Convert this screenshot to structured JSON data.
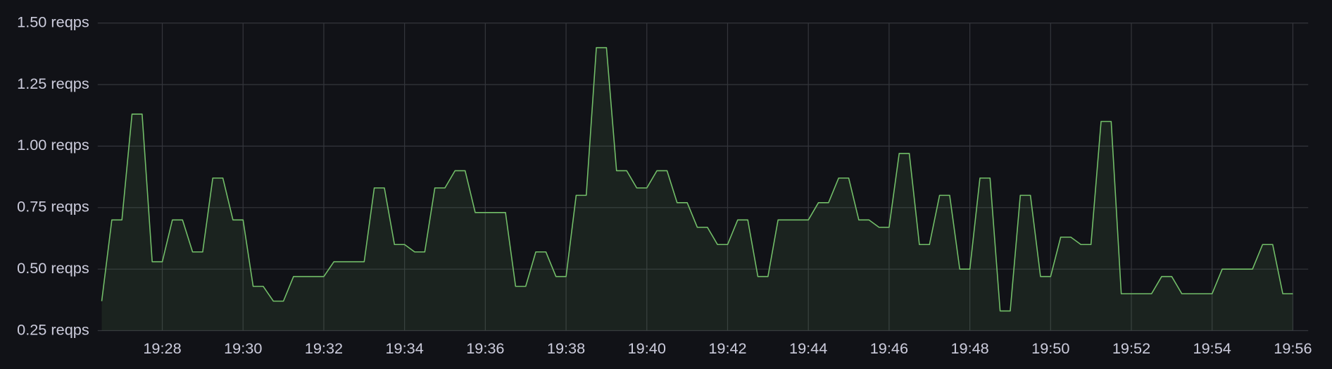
{
  "chart_data": {
    "type": "line",
    "x": [
      26.5,
      26.75,
      27,
      27.25,
      27.5,
      27.75,
      28,
      28.25,
      28.5,
      28.75,
      29,
      29.25,
      29.5,
      29.75,
      30,
      30.25,
      30.5,
      30.75,
      31,
      31.25,
      31.5,
      31.75,
      32,
      32.25,
      32.5,
      32.75,
      33,
      33.25,
      33.5,
      33.75,
      34,
      34.25,
      34.5,
      34.75,
      35,
      35.25,
      35.5,
      35.75,
      36,
      36.25,
      36.5,
      36.75,
      37,
      37.25,
      37.5,
      37.75,
      38,
      38.25,
      38.5,
      38.75,
      39,
      39.25,
      39.5,
      39.75,
      40,
      40.25,
      40.5,
      40.75,
      41,
      41.25,
      41.5,
      41.75,
      42,
      42.25,
      42.5,
      42.75,
      43,
      43.25,
      43.5,
      43.75,
      44,
      44.25,
      44.5,
      44.75,
      45,
      45.25,
      45.5,
      45.75,
      46,
      46.25,
      46.5,
      46.75,
      47,
      47.25,
      47.5,
      47.75,
      48,
      48.25,
      48.5,
      48.75,
      49,
      49.25,
      49.5,
      49.75,
      50,
      50.25,
      50.5,
      50.75,
      51,
      51.25,
      51.5,
      51.75,
      52,
      52.25,
      52.5,
      52.75,
      53,
      53.25,
      53.5,
      53.75,
      54,
      54.25,
      54.5,
      54.75,
      55,
      55.25,
      55.5,
      55.75,
      56
    ],
    "series": [
      {
        "color": "#73bf69",
        "values": [
          0.37,
          0.7,
          0.7,
          1.13,
          1.13,
          0.53,
          0.53,
          0.7,
          0.7,
          0.57,
          0.57,
          0.87,
          0.87,
          0.7,
          0.7,
          0.43,
          0.43,
          0.37,
          0.37,
          0.47,
          0.47,
          0.47,
          0.47,
          0.53,
          0.53,
          0.53,
          0.53,
          0.83,
          0.83,
          0.6,
          0.6,
          0.57,
          0.57,
          0.83,
          0.83,
          0.9,
          0.9,
          0.73,
          0.73,
          0.73,
          0.73,
          0.43,
          0.43,
          0.57,
          0.57,
          0.47,
          0.47,
          0.8,
          0.8,
          1.4,
          1.4,
          0.9,
          0.9,
          0.83,
          0.83,
          0.9,
          0.9,
          0.77,
          0.77,
          0.67,
          0.67,
          0.6,
          0.6,
          0.7,
          0.7,
          0.47,
          0.47,
          0.7,
          0.7,
          0.7,
          0.7,
          0.77,
          0.77,
          0.87,
          0.87,
          0.7,
          0.7,
          0.67,
          0.67,
          0.97,
          0.97,
          0.6,
          0.6,
          0.8,
          0.8,
          0.5,
          0.5,
          0.87,
          0.87,
          0.33,
          0.33,
          0.8,
          0.8,
          0.47,
          0.47,
          0.63,
          0.63,
          0.6,
          0.6,
          1.1,
          1.1,
          0.4,
          0.4,
          0.4,
          0.4,
          0.47,
          0.47,
          0.4,
          0.4,
          0.4,
          0.4,
          0.5,
          0.5,
          0.5,
          0.5,
          0.6,
          0.6,
          0.4,
          0.4
        ]
      }
    ],
    "xlim": [
      26.4,
      56.38
    ],
    "xticks": [
      {
        "value": 28,
        "label": "19:28"
      },
      {
        "value": 30,
        "label": "19:30"
      },
      {
        "value": 32,
        "label": "19:32"
      },
      {
        "value": 34,
        "label": "19:34"
      },
      {
        "value": 36,
        "label": "19:36"
      },
      {
        "value": 38,
        "label": "19:38"
      },
      {
        "value": 40,
        "label": "19:40"
      },
      {
        "value": 42,
        "label": "19:42"
      },
      {
        "value": 44,
        "label": "19:44"
      },
      {
        "value": 46,
        "label": "19:46"
      },
      {
        "value": 48,
        "label": "19:48"
      },
      {
        "value": 50,
        "label": "19:50"
      },
      {
        "value": 52,
        "label": "19:52"
      },
      {
        "value": 54,
        "label": "19:54"
      },
      {
        "value": 56,
        "label": "19:56"
      }
    ],
    "ylim": [
      0.25,
      1.5
    ],
    "yticks": [
      {
        "value": 0.25,
        "label": "0.25 reqps"
      },
      {
        "value": 0.5,
        "label": "0.50 reqps"
      },
      {
        "value": 0.75,
        "label": "0.75 reqps"
      },
      {
        "value": 1.0,
        "label": "1.00 reqps"
      },
      {
        "value": 1.25,
        "label": "1.25 reqps"
      },
      {
        "value": 1.5,
        "label": "1.50 reqps"
      }
    ],
    "grid": true
  }
}
